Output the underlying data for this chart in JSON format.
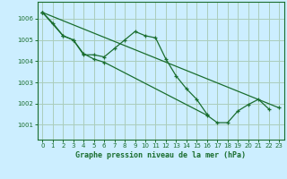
{
  "background_color": "#cceeff",
  "grid_color": "#aaccbb",
  "line_color": "#1a6e2e",
  "title": "Graphe pression niveau de la mer (hPa)",
  "xlim": [
    -0.5,
    23.5
  ],
  "ylim": [
    1000.3,
    1006.8
  ],
  "yticks": [
    1001,
    1002,
    1003,
    1004,
    1005,
    1006
  ],
  "xticks": [
    0,
    1,
    2,
    3,
    4,
    5,
    6,
    7,
    8,
    9,
    10,
    11,
    12,
    13,
    14,
    15,
    16,
    17,
    18,
    19,
    20,
    21,
    22,
    23
  ],
  "series": [
    {
      "x": [
        0,
        1,
        2,
        3,
        4,
        5,
        6,
        7,
        8,
        9,
        10,
        11,
        12,
        13,
        14,
        15,
        16
      ],
      "y": [
        1006.3,
        1005.8,
        1005.2,
        1005.0,
        1004.3,
        1004.3,
        1004.2,
        1004.6,
        1005.0,
        1005.4,
        1005.2,
        1005.1,
        1004.1,
        1003.3,
        1002.7,
        1002.2,
        1001.5
      ]
    },
    {
      "x": [
        0,
        2,
        3,
        4,
        5,
        6,
        16,
        17,
        18,
        19,
        20,
        21,
        22
      ],
      "y": [
        1006.3,
        1005.2,
        1005.0,
        1004.35,
        1004.1,
        1003.95,
        1001.45,
        1001.1,
        1001.1,
        1001.65,
        1001.95,
        1002.2,
        1001.75
      ]
    },
    {
      "x": [
        0,
        23
      ],
      "y": [
        1006.3,
        1001.8
      ]
    }
  ]
}
